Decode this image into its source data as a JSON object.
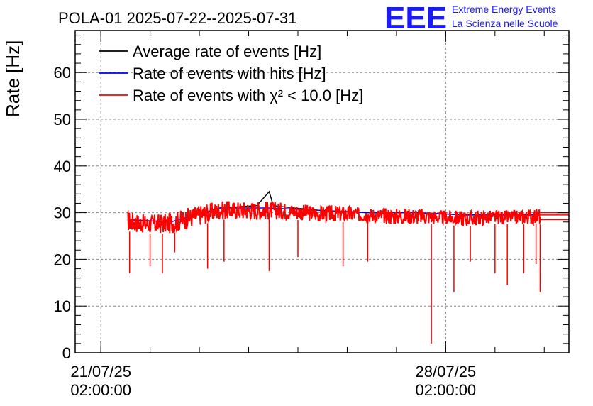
{
  "chart_data": {
    "type": "line",
    "title": "POLA-01 2025-07-22--2025-07-31",
    "ylabel": "Rate [Hz]",
    "xlabel": "",
    "ylim": [
      0,
      69
    ],
    "yticks": [
      0,
      10,
      20,
      30,
      40,
      50,
      60
    ],
    "xlim": [
      "2025-07-20T13:30:00",
      "2025-07-30T14:00:00"
    ],
    "xticks": [
      {
        "value": "2025-07-21T02:00:00",
        "date": "21/07/25",
        "time": "02:00:00"
      },
      {
        "value": "2025-07-28T02:00:00",
        "date": "28/07/25",
        "time": "02:00:00"
      }
    ],
    "grid": true,
    "legend_position": "top-left",
    "series": [
      {
        "name": "Average rate of events [Hz]",
        "color": "#000000",
        "x": [
          "2025-07-21T15:00:00",
          "2025-07-22T12:00:00",
          "2025-07-23T12:00:00",
          "2025-07-24T06:00:00",
          "2025-07-24T12:00:00",
          "2025-07-24T14:00:00",
          "2025-07-25T00:00:00",
          "2025-07-25T12:00:00",
          "2025-07-26T12:00:00",
          "2025-07-27T12:00:00",
          "2025-07-28T12:00:00",
          "2025-07-29T12:00:00",
          "2025-07-30T00:00:00"
        ],
        "y": [
          28.5,
          28.0,
          31.0,
          31.5,
          34.5,
          31.5,
          31.0,
          30.5,
          30.0,
          30.0,
          29.5,
          29.5,
          29.5
        ]
      },
      {
        "name": "Rate of events with hits [Hz]",
        "color": "#0000ff",
        "x": [
          "2025-07-21T15:00:00",
          "2025-07-22T12:00:00",
          "2025-07-23T12:00:00",
          "2025-07-24T12:00:00",
          "2025-07-25T12:00:00",
          "2025-07-26T12:00:00",
          "2025-07-27T12:00:00",
          "2025-07-28T12:00:00",
          "2025-07-29T12:00:00",
          "2025-07-30T00:00:00"
        ],
        "y": [
          28.5,
          28.0,
          31.0,
          31.0,
          30.5,
          30.0,
          30.0,
          29.5,
          29.5,
          29.5
        ]
      },
      {
        "name": "Rate of events with χ² < 10.0 [Hz]",
        "color": "#ff0000",
        "band": {
          "x": [
            "2025-07-21T15:00:00",
            "2025-07-22T00:00:00",
            "2025-07-22T12:00:00",
            "2025-07-23T00:00:00",
            "2025-07-23T12:00:00",
            "2025-07-24T00:00:00",
            "2025-07-24T12:00:00",
            "2025-07-25T00:00:00",
            "2025-07-25T12:00:00",
            "2025-07-26T00:00:00",
            "2025-07-26T12:00:00",
            "2025-07-27T00:00:00",
            "2025-07-27T12:00:00",
            "2025-07-28T00:00:00",
            "2025-07-28T12:00:00",
            "2025-07-29T00:00:00",
            "2025-07-29T12:00:00",
            "2025-07-30T00:00:00"
          ],
          "low": [
            26.0,
            25.5,
            25.5,
            27.0,
            28.5,
            28.5,
            28.5,
            28.5,
            28.0,
            28.0,
            28.0,
            27.5,
            27.5,
            27.5,
            27.0,
            27.5,
            27.5,
            27.5
          ],
          "high": [
            30.5,
            29.5,
            30.0,
            31.5,
            32.5,
            32.5,
            32.5,
            32.0,
            31.5,
            31.5,
            31.0,
            31.0,
            31.0,
            30.5,
            30.5,
            30.5,
            30.5,
            31.0
          ]
        },
        "dips": [
          {
            "x": "2025-07-21T16:00:00",
            "y": 17.0
          },
          {
            "x": "2025-07-22T02:00:00",
            "y": 18.5
          },
          {
            "x": "2025-07-22T08:00:00",
            "y": 17.0
          },
          {
            "x": "2025-07-22T14:00:00",
            "y": 21.5
          },
          {
            "x": "2025-07-23T06:00:00",
            "y": 18.0
          },
          {
            "x": "2025-07-23T14:00:00",
            "y": 19.5
          },
          {
            "x": "2025-07-24T12:00:00",
            "y": 17.5
          },
          {
            "x": "2025-07-25T02:00:00",
            "y": 20.5
          },
          {
            "x": "2025-07-26T00:00:00",
            "y": 18.5
          },
          {
            "x": "2025-07-26T12:00:00",
            "y": 19.5
          },
          {
            "x": "2025-07-27T19:00:00",
            "y": 2.0
          },
          {
            "x": "2025-07-28T06:00:00",
            "y": 13.0
          },
          {
            "x": "2025-07-28T14:00:00",
            "y": 19.5
          },
          {
            "x": "2025-07-29T02:00:00",
            "y": 17.0
          },
          {
            "x": "2025-07-29T08:00:00",
            "y": 14.5
          },
          {
            "x": "2025-07-29T16:00:00",
            "y": 17.0
          },
          {
            "x": "2025-07-29T22:00:00",
            "y": 19.0
          },
          {
            "x": "2025-07-30T00:00:00",
            "y": 13.0
          }
        ],
        "trailing_lines_y": [
          28.5,
          29.5,
          30.0
        ]
      }
    ]
  },
  "logo": {
    "mark": "EEE",
    "line1": "Extreme Energy Events",
    "line2": "La Scienza nelle Scuole"
  }
}
